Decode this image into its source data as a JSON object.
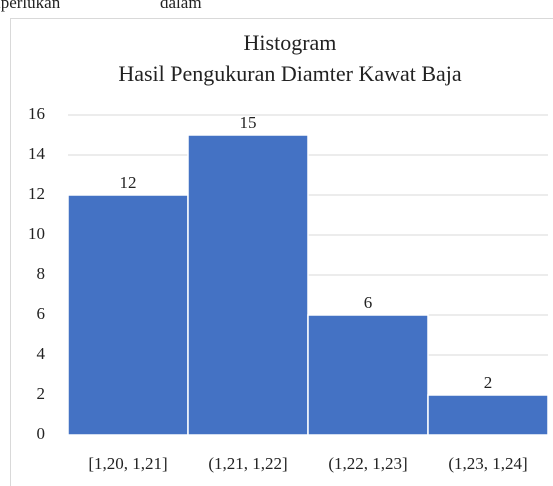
{
  "page_text": [
    "iperlukan",
    "dalam"
  ],
  "chart_data": {
    "type": "bar",
    "title": "Histogram",
    "subtitle": "Hasil Pengukuran Diamter Kawat Baja",
    "categories": [
      "[1,20, 1,21]",
      "(1,21, 1,22]",
      "(1,22, 1,23]",
      "(1,23, 1,24]"
    ],
    "values": [
      12,
      15,
      6,
      2
    ],
    "color": "#4472c4",
    "ylim": [
      0,
      16
    ],
    "yticks": [
      0,
      2,
      4,
      6,
      8,
      10,
      12,
      14,
      16
    ],
    "grid": true
  }
}
